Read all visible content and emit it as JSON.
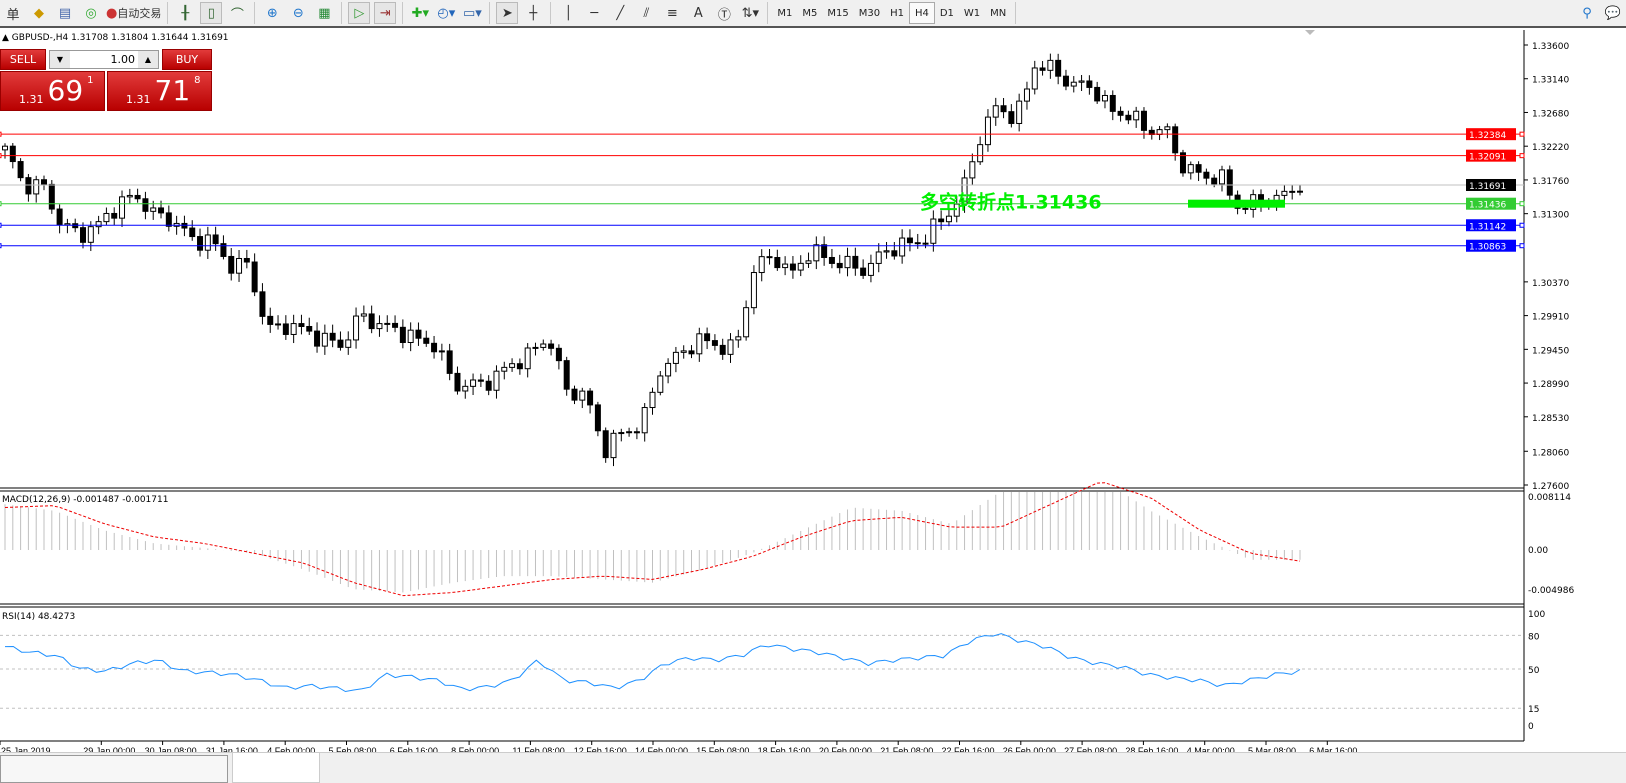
{
  "toolbar": {
    "items": [
      {
        "icon": "menu-icon",
        "label": "单"
      },
      {
        "icon": "market-watch-icon"
      },
      {
        "icon": "data-window-icon"
      },
      {
        "icon": "signal-icon"
      },
      {
        "icon": "auto-trading-icon",
        "label": "自动交易"
      }
    ],
    "chart_tools": [
      "bar-chart-icon",
      "candlestick-icon",
      "line-chart-icon",
      "zoom-in-icon",
      "zoom-out-icon",
      "tile-windows-icon",
      "auto-scroll-icon",
      "chart-shift-icon",
      "indicators-icon",
      "period-clock-icon",
      "templates-icon",
      "cursor-icon",
      "crosshair-icon",
      "vertical-line-icon",
      "horizontal-line-icon",
      "trendline-icon",
      "fibo-channel-icon",
      "fibo-lines-icon",
      "text-icon",
      "text-label-icon",
      "arrows-icon"
    ],
    "text_tool_label": "A",
    "timeframes": [
      "M1",
      "M5",
      "M15",
      "M30",
      "H1",
      "H4",
      "D1",
      "W1",
      "MN"
    ],
    "active_timeframe": "H4"
  },
  "symbol_line": "GBPUSD-,H4  1.31708 1.31804 1.31644 1.31691",
  "trade_panel": {
    "sell_label": "SELL",
    "buy_label": "BUY",
    "lot": "1.00",
    "sell": {
      "big": "1.31",
      "main": "69",
      "frac": "1"
    },
    "buy": {
      "big": "1.31",
      "main": "71",
      "frac": "8"
    }
  },
  "annotation": {
    "text": "多空转折点1.31436",
    "color": "#00ee00"
  },
  "levels": [
    {
      "price": "1.32384",
      "color": "#ff0000"
    },
    {
      "price": "1.32091",
      "color": "#ff0000"
    },
    {
      "price": "1.31691",
      "color": "#000000",
      "line": "#c0c0c0"
    },
    {
      "price": "1.31436",
      "color": "#33cc33"
    },
    {
      "price": "1.31142",
      "color": "#0000ff"
    },
    {
      "price": "1.30863",
      "color": "#0000ff"
    }
  ],
  "price_axis": [
    "1.33600",
    "1.33140",
    "1.32680",
    "1.32220",
    "1.31760",
    "1.31300",
    "1.30370",
    "1.29910",
    "1.29450",
    "1.28990",
    "1.28530",
    "1.28060",
    "1.27600"
  ],
  "price_closes": [
    1.3217,
    1.3169,
    1.3169,
    1.3115,
    1.3101,
    1.3115,
    1.3142,
    1.3155,
    1.3128,
    1.3121,
    1.3094,
    1.3094,
    1.306,
    1.306,
    1.2971,
    1.2978,
    1.2971,
    1.2958,
    1.2951,
    1.2992,
    1.2978,
    1.2971,
    1.2958,
    1.2951,
    1.2896,
    1.2896,
    1.2903,
    1.2924,
    1.2937,
    1.2964,
    1.2889,
    1.2883,
    1.2808,
    1.2832,
    1.2842,
    1.2917,
    1.2937,
    1.2958,
    1.2951,
    1.2944,
    1.3053,
    1.3074,
    1.3046,
    1.308,
    1.3067,
    1.306,
    1.3053,
    1.308,
    1.3087,
    1.3094,
    1.3121,
    1.3149,
    1.323,
    1.3278,
    1.3258,
    1.3333,
    1.3326,
    1.3305,
    1.3305,
    1.3271,
    1.3265,
    1.3244,
    1.3244,
    1.319,
    1.3183,
    1.3176,
    1.3135,
    1.3149,
    1.3149,
    1.3169
  ],
  "macd": {
    "label": "MACD(12,26,9) -0.001487 -0.001711",
    "axis": [
      "0.008114",
      "0.00",
      "-0.004986"
    ],
    "histogram": [
      0.007,
      0.006,
      0.003,
      0.001,
      0.0003,
      -0.0005,
      -0.003,
      -0.006,
      -0.0065,
      -0.005,
      -0.004,
      -0.004,
      -0.0045,
      -0.005,
      -0.003,
      -0.0005,
      0.003,
      0.0065,
      0.006,
      0.004,
      0.009,
      0.011,
      0.011,
      0.006,
      0.002,
      -0.0015,
      -0.0015
    ],
    "signal": [
      0.0065,
      0.0068,
      0.004,
      0.002,
      0.001,
      -0.0005,
      -0.002,
      -0.005,
      -0.007,
      -0.0065,
      -0.0055,
      -0.0045,
      -0.004,
      -0.0045,
      -0.003,
      -0.001,
      0.002,
      0.0045,
      0.005,
      0.0035,
      0.0035,
      0.007,
      0.0105,
      0.008,
      0.003,
      -0.0005,
      -0.0017
    ]
  },
  "rsi": {
    "label": "RSI(14) 48.4273",
    "axis": [
      "100",
      "80",
      "50",
      "15",
      "0"
    ],
    "values": [
      70,
      65,
      62,
      50,
      48,
      55,
      58,
      48,
      47,
      45,
      40,
      33,
      35,
      33,
      30,
      45,
      43,
      40,
      32,
      34,
      40,
      58,
      40,
      38,
      33,
      40,
      55,
      60,
      58,
      62,
      72,
      68,
      65,
      60,
      55,
      58,
      60,
      62,
      75,
      82,
      75,
      70,
      60,
      55,
      52,
      45,
      42,
      40,
      35,
      40,
      45,
      48
    ]
  },
  "time_axis": [
    "25 Jan 2019",
    "29 Jan 00:00",
    "30 Jan 08:00",
    "31 Jan 16:00",
    "4 Feb 00:00",
    "5 Feb 08:00",
    "6 Feb 16:00",
    "8 Feb 00:00",
    "11 Feb 08:00",
    "12 Feb 16:00",
    "14 Feb 00:00",
    "15 Feb 08:00",
    "18 Feb 16:00",
    "20 Feb 00:00",
    "21 Feb 08:00",
    "22 Feb 16:00",
    "26 Feb 00:00",
    "27 Feb 08:00",
    "28 Feb 16:00",
    "4 Mar 00:00",
    "5 Mar 08:00",
    "6 Mar 16:00"
  ]
}
